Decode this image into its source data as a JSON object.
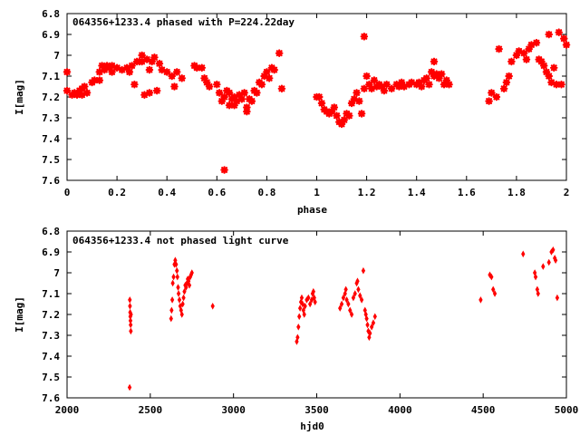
{
  "colors": {
    "points": "#ff0000",
    "axes": "#000000"
  },
  "chart_data": [
    {
      "type": "scatter",
      "title": "064356+1233.4 phased with P=224.22day",
      "xlabel": "phase",
      "ylabel": "I[mag]",
      "xlim": [
        0,
        2
      ],
      "ylim": [
        6.8,
        7.6
      ],
      "y_inverted": true,
      "grid": false,
      "x_ticks": [
        0,
        0.2,
        0.4,
        0.6,
        0.8,
        1,
        1.2,
        1.4,
        1.6,
        1.8,
        2
      ],
      "x_tick_labels": [
        "0",
        "0.2",
        "0.4",
        "0.6",
        "0.8",
        "1",
        "1.2",
        "1.4",
        "1.6",
        "1.8",
        "2"
      ],
      "y_ticks": [
        6.8,
        6.9,
        7.0,
        7.1,
        7.2,
        7.3,
        7.4,
        7.5,
        7.6
      ],
      "y_tick_labels": [
        "6.8",
        "6.9",
        "7",
        "7.1",
        "7.2",
        "7.3",
        "7.4",
        "7.5",
        "7.6"
      ],
      "marker": "star",
      "points": [
        [
          0.0,
          7.08
        ],
        [
          0.0,
          7.17
        ],
        [
          0.02,
          7.19
        ],
        [
          0.03,
          7.18
        ],
        [
          0.04,
          7.19
        ],
        [
          0.05,
          7.17
        ],
        [
          0.06,
          7.16
        ],
        [
          0.06,
          7.19
        ],
        [
          0.07,
          7.15
        ],
        [
          0.08,
          7.18
        ],
        [
          0.1,
          7.13
        ],
        [
          0.11,
          7.12
        ],
        [
          0.13,
          7.12
        ],
        [
          0.13,
          7.08
        ],
        [
          0.14,
          7.05
        ],
        [
          0.15,
          7.07
        ],
        [
          0.16,
          7.05
        ],
        [
          0.17,
          7.06
        ],
        [
          0.18,
          7.08
        ],
        [
          0.18,
          7.05
        ],
        [
          0.2,
          7.06
        ],
        [
          0.22,
          7.07
        ],
        [
          0.24,
          7.06
        ],
        [
          0.25,
          7.08
        ],
        [
          0.26,
          7.05
        ],
        [
          0.27,
          7.14
        ],
        [
          0.28,
          7.03
        ],
        [
          0.29,
          7.03
        ],
        [
          0.3,
          7.0
        ],
        [
          0.3,
          7.03
        ],
        [
          0.31,
          7.19
        ],
        [
          0.32,
          7.02
        ],
        [
          0.33,
          7.07
        ],
        [
          0.33,
          7.18
        ],
        [
          0.34,
          7.03
        ],
        [
          0.35,
          7.01
        ],
        [
          0.36,
          7.17
        ],
        [
          0.37,
          7.04
        ],
        [
          0.38,
          7.07
        ],
        [
          0.4,
          7.08
        ],
        [
          0.42,
          7.1
        ],
        [
          0.43,
          7.15
        ],
        [
          0.44,
          7.08
        ],
        [
          0.46,
          7.11
        ],
        [
          0.51,
          7.05
        ],
        [
          0.52,
          7.06
        ],
        [
          0.54,
          7.06
        ],
        [
          0.55,
          7.11
        ],
        [
          0.56,
          7.13
        ],
        [
          0.57,
          7.15
        ],
        [
          0.6,
          7.14
        ],
        [
          0.61,
          7.18
        ],
        [
          0.62,
          7.22
        ],
        [
          0.63,
          7.2
        ],
        [
          0.64,
          7.17
        ],
        [
          0.65,
          7.18
        ],
        [
          0.65,
          7.24
        ],
        [
          0.66,
          7.21
        ],
        [
          0.67,
          7.2
        ],
        [
          0.67,
          7.24
        ],
        [
          0.68,
          7.22
        ],
        [
          0.69,
          7.19
        ],
        [
          0.7,
          7.21
        ],
        [
          0.71,
          7.18
        ],
        [
          0.72,
          7.25
        ],
        [
          0.72,
          7.27
        ],
        [
          0.73,
          7.21
        ],
        [
          0.74,
          7.22
        ],
        [
          0.75,
          7.17
        ],
        [
          0.76,
          7.18
        ],
        [
          0.77,
          7.13
        ],
        [
          0.78,
          7.14
        ],
        [
          0.79,
          7.1
        ],
        [
          0.8,
          7.08
        ],
        [
          0.81,
          7.11
        ],
        [
          0.82,
          7.06
        ],
        [
          0.83,
          7.07
        ],
        [
          0.85,
          6.99
        ],
        [
          0.86,
          7.16
        ],
        [
          0.63,
          7.55
        ],
        [
          1.0,
          7.2
        ],
        [
          1.01,
          7.2
        ],
        [
          1.02,
          7.23
        ],
        [
          1.03,
          7.26
        ],
        [
          1.04,
          7.27
        ],
        [
          1.05,
          7.28
        ],
        [
          1.06,
          7.27
        ],
        [
          1.07,
          7.25
        ],
        [
          1.08,
          7.29
        ],
        [
          1.09,
          7.32
        ],
        [
          1.1,
          7.33
        ],
        [
          1.11,
          7.31
        ],
        [
          1.12,
          7.28
        ],
        [
          1.13,
          7.29
        ],
        [
          1.14,
          7.23
        ],
        [
          1.15,
          7.21
        ],
        [
          1.16,
          7.18
        ],
        [
          1.17,
          7.22
        ],
        [
          1.18,
          7.28
        ],
        [
          1.19,
          7.16
        ],
        [
          1.2,
          7.1
        ],
        [
          1.21,
          7.14
        ],
        [
          1.22,
          7.16
        ],
        [
          1.23,
          7.12
        ],
        [
          1.24,
          7.15
        ],
        [
          1.25,
          7.14
        ],
        [
          1.26,
          7.15
        ],
        [
          1.27,
          7.17
        ],
        [
          1.28,
          7.14
        ],
        [
          1.3,
          7.16
        ],
        [
          1.32,
          7.14
        ],
        [
          1.33,
          7.15
        ],
        [
          1.34,
          7.13
        ],
        [
          1.35,
          7.15
        ],
        [
          1.37,
          7.14
        ],
        [
          1.38,
          7.13
        ],
        [
          1.4,
          7.14
        ],
        [
          1.41,
          7.13
        ],
        [
          1.42,
          7.15
        ],
        [
          1.43,
          7.12
        ],
        [
          1.44,
          7.11
        ],
        [
          1.45,
          7.14
        ],
        [
          1.46,
          7.08
        ],
        [
          1.47,
          7.03
        ],
        [
          1.47,
          7.1
        ],
        [
          1.48,
          7.09
        ],
        [
          1.49,
          7.11
        ],
        [
          1.5,
          7.09
        ],
        [
          1.51,
          7.14
        ],
        [
          1.52,
          7.12
        ],
        [
          1.53,
          7.14
        ],
        [
          1.19,
          6.91
        ],
        [
          1.69,
          7.22
        ],
        [
          1.7,
          7.18
        ],
        [
          1.72,
          7.2
        ],
        [
          1.73,
          6.97
        ],
        [
          1.75,
          7.16
        ],
        [
          1.76,
          7.13
        ],
        [
          1.77,
          7.1
        ],
        [
          1.78,
          7.03
        ],
        [
          1.8,
          7.0
        ],
        [
          1.81,
          6.98
        ],
        [
          1.83,
          6.99
        ],
        [
          1.84,
          7.02
        ],
        [
          1.85,
          6.97
        ],
        [
          1.86,
          6.95
        ],
        [
          1.88,
          6.94
        ],
        [
          1.89,
          7.02
        ],
        [
          1.9,
          7.03
        ],
        [
          1.91,
          7.05
        ],
        [
          1.92,
          7.08
        ],
        [
          1.93,
          7.1
        ],
        [
          1.93,
          6.9
        ],
        [
          1.94,
          7.13
        ],
        [
          1.95,
          7.06
        ],
        [
          1.96,
          7.14
        ],
        [
          1.97,
          6.89
        ],
        [
          1.98,
          7.14
        ],
        [
          1.99,
          6.92
        ],
        [
          2.0,
          6.95
        ]
      ]
    },
    {
      "type": "scatter",
      "title": "064356+1233.4 not phased light curve",
      "xlabel": "hjd0",
      "ylabel": "I[mag]",
      "xlim": [
        2000,
        5000
      ],
      "ylim": [
        6.8,
        7.6
      ],
      "y_inverted": true,
      "grid": false,
      "x_ticks": [
        2000,
        2500,
        3000,
        3500,
        4000,
        4500,
        5000
      ],
      "x_tick_labels": [
        "2000",
        "2500",
        "3000",
        "3500",
        "4000",
        "4500",
        "5000"
      ],
      "y_ticks": [
        6.8,
        6.9,
        7.0,
        7.1,
        7.2,
        7.3,
        7.4,
        7.5,
        7.6
      ],
      "y_tick_labels": [
        "6.8",
        "6.9",
        "7",
        "7.1",
        "7.2",
        "7.3",
        "7.4",
        "7.5",
        "7.6"
      ],
      "marker": "diamond",
      "points": [
        [
          2377,
          7.13
        ],
        [
          2378,
          7.16
        ],
        [
          2379,
          7.19
        ],
        [
          2380,
          7.21
        ],
        [
          2381,
          7.23
        ],
        [
          2382,
          7.25
        ],
        [
          2383,
          7.28
        ],
        [
          2384,
          7.2
        ],
        [
          2376,
          7.55
        ],
        [
          2625,
          7.22
        ],
        [
          2628,
          7.18
        ],
        [
          2632,
          7.13
        ],
        [
          2635,
          7.05
        ],
        [
          2640,
          7.02
        ],
        [
          2645,
          6.96
        ],
        [
          2650,
          6.94
        ],
        [
          2655,
          6.96
        ],
        [
          2660,
          6.99
        ],
        [
          2663,
          7.02
        ],
        [
          2667,
          7.07
        ],
        [
          2670,
          7.1
        ],
        [
          2675,
          7.13
        ],
        [
          2680,
          7.16
        ],
        [
          2685,
          7.18
        ],
        [
          2690,
          7.2
        ],
        [
          2695,
          7.15
        ],
        [
          2700,
          7.12
        ],
        [
          2705,
          7.09
        ],
        [
          2710,
          7.06
        ],
        [
          2715,
          7.07
        ],
        [
          2720,
          7.05
        ],
        [
          2725,
          7.03
        ],
        [
          2730,
          7.04
        ],
        [
          2735,
          7.06
        ],
        [
          2740,
          7.02
        ],
        [
          2745,
          7.01
        ],
        [
          2750,
          7.0
        ],
        [
          2875,
          7.16
        ],
        [
          3380,
          7.33
        ],
        [
          3385,
          7.31
        ],
        [
          3390,
          7.26
        ],
        [
          3395,
          7.21
        ],
        [
          3400,
          7.17
        ],
        [
          3405,
          7.14
        ],
        [
          3410,
          7.12
        ],
        [
          3415,
          7.15
        ],
        [
          3420,
          7.18
        ],
        [
          3425,
          7.2
        ],
        [
          3430,
          7.16
        ],
        [
          3440,
          7.13
        ],
        [
          3450,
          7.12
        ],
        [
          3460,
          7.15
        ],
        [
          3470,
          7.13
        ],
        [
          3475,
          7.1
        ],
        [
          3480,
          7.09
        ],
        [
          3485,
          7.12
        ],
        [
          3490,
          7.14
        ],
        [
          3640,
          7.17
        ],
        [
          3650,
          7.15
        ],
        [
          3660,
          7.12
        ],
        [
          3670,
          7.1
        ],
        [
          3675,
          7.08
        ],
        [
          3680,
          7.13
        ],
        [
          3690,
          7.15
        ],
        [
          3700,
          7.18
        ],
        [
          3710,
          7.2
        ],
        [
          3720,
          7.12
        ],
        [
          3730,
          7.1
        ],
        [
          3740,
          7.05
        ],
        [
          3745,
          7.04
        ],
        [
          3750,
          7.08
        ],
        [
          3760,
          7.11
        ],
        [
          3770,
          7.13
        ],
        [
          3780,
          6.99
        ],
        [
          3790,
          7.18
        ],
        [
          3795,
          7.2
        ],
        [
          3800,
          7.22
        ],
        [
          3805,
          7.25
        ],
        [
          3810,
          7.28
        ],
        [
          3815,
          7.31
        ],
        [
          3820,
          7.29
        ],
        [
          3830,
          7.26
        ],
        [
          3840,
          7.24
        ],
        [
          3850,
          7.21
        ],
        [
          4485,
          7.13
        ],
        [
          4540,
          7.01
        ],
        [
          4550,
          7.02
        ],
        [
          4560,
          7.08
        ],
        [
          4570,
          7.1
        ],
        [
          4740,
          6.91
        ],
        [
          4810,
          7.0
        ],
        [
          4815,
          7.02
        ],
        [
          4825,
          7.08
        ],
        [
          4830,
          7.1
        ],
        [
          4860,
          6.97
        ],
        [
          4895,
          6.95
        ],
        [
          4910,
          6.9
        ],
        [
          4920,
          6.89
        ],
        [
          4930,
          6.93
        ],
        [
          4935,
          6.94
        ],
        [
          4945,
          7.12
        ]
      ]
    }
  ]
}
